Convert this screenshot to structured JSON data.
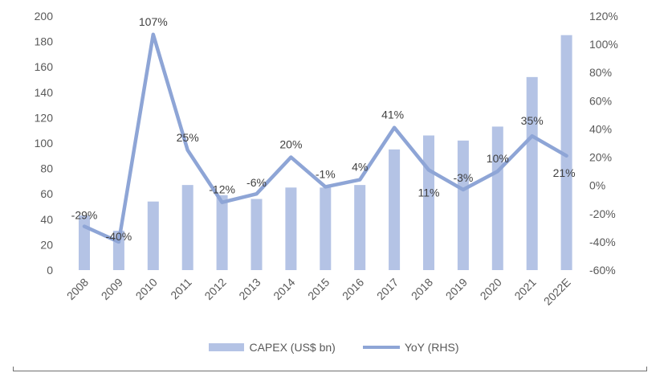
{
  "chart_data": {
    "type": "bar+line",
    "categories": [
      "2008",
      "2009",
      "2010",
      "2011",
      "2012",
      "2013",
      "2014",
      "2015",
      "2016",
      "2017",
      "2018",
      "2019",
      "2020",
      "2021",
      "2022E"
    ],
    "series": [
      {
        "name": "CAPEX (US$ bn)",
        "type": "bar",
        "axis": "left",
        "values": [
          43,
          31,
          54,
          67,
          59,
          56,
          65,
          65,
          67,
          95,
          106,
          102,
          113,
          152,
          185
        ]
      },
      {
        "name": "YoY (RHS)",
        "type": "line",
        "axis": "right",
        "values": [
          -29,
          -40,
          107,
          25,
          -12,
          -6,
          20,
          -1,
          4,
          41,
          11,
          -3,
          10,
          35,
          21
        ],
        "labels": [
          "-29%",
          "-40%",
          "107%",
          "25%",
          "-12%",
          "-6%",
          "20%",
          "-1%",
          "4%",
          "41%",
          "11%",
          "-3%",
          "10%",
          "35%",
          "21%"
        ]
      }
    ],
    "y_left": {
      "min": 0,
      "max": 200,
      "step": 20,
      "ticks": [
        "0",
        "20",
        "40",
        "60",
        "80",
        "100",
        "120",
        "140",
        "160",
        "180",
        "200"
      ]
    },
    "y_right": {
      "min": -60,
      "max": 120,
      "step": 20,
      "ticks": [
        "-60%",
        "-40%",
        "-20%",
        "0%",
        "20%",
        "40%",
        "60%",
        "80%",
        "100%",
        "120%"
      ]
    },
    "grid": false,
    "legend_position": "bottom",
    "colors": {
      "bar": "#b4c3e5",
      "line": "#8ea5d6",
      "tick_text": "#595959",
      "label_text": "#404040"
    }
  }
}
